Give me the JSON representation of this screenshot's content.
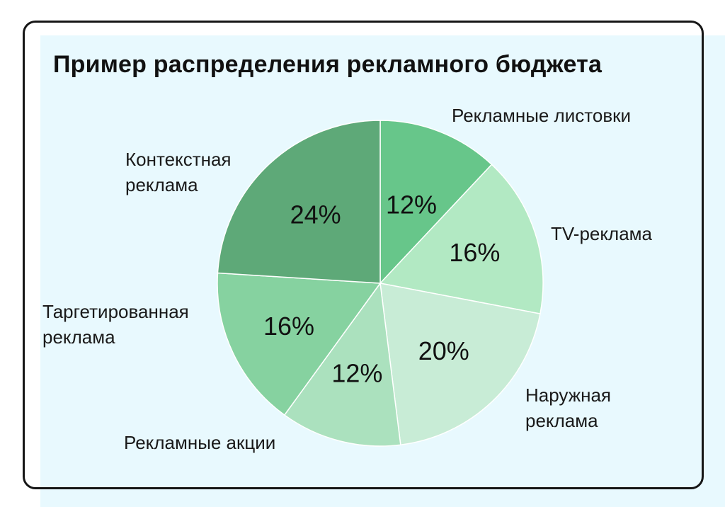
{
  "chart_data": {
    "type": "pie",
    "title": "Пример распределения рекламного бюджета",
    "start_angle_deg": 0,
    "direction": "clockwise",
    "slices": [
      {
        "label_lines": [
          "Рекламные листовки"
        ],
        "value": 12,
        "value_label": "12%",
        "color": "#67c68a"
      },
      {
        "label_lines": [
          "TV-реклама"
        ],
        "value": 16,
        "value_label": "16%",
        "color": "#b2e9c3"
      },
      {
        "label_lines": [
          "Наружная",
          "реклама"
        ],
        "value": 20,
        "value_label": "20%",
        "color": "#c8ecd6"
      },
      {
        "label_lines": [
          "Рекламные акции"
        ],
        "value": 12,
        "value_label": "12%",
        "color": "#abe1be"
      },
      {
        "label_lines": [
          "Таргетированная",
          "реклама"
        ],
        "value": 16,
        "value_label": "16%",
        "color": "#86d2a0"
      },
      {
        "label_lines": [
          "Контекстная",
          "реклама"
        ],
        "value": 24,
        "value_label": "24%",
        "color": "#5ea978"
      }
    ]
  }
}
